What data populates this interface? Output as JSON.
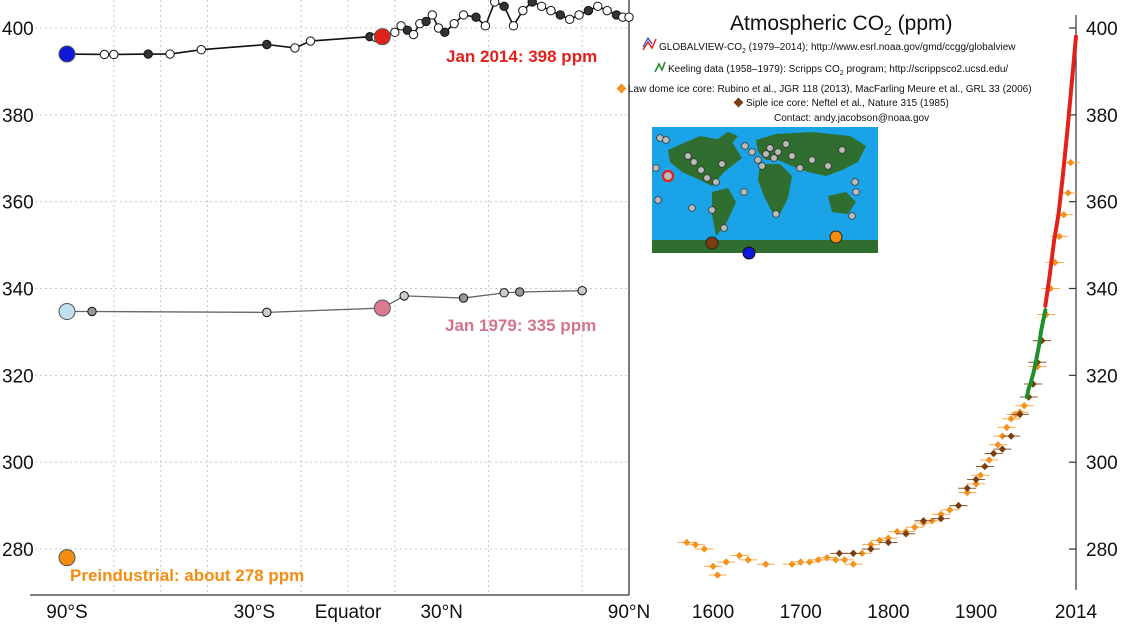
{
  "chart_data": [
    {
      "type": "line",
      "panel": "latitude",
      "title": "",
      "xlabel": "",
      "ylabel": "",
      "x_ticks": [
        "90°S",
        "30°S",
        "Equator",
        "30°N",
        "90°N"
      ],
      "x_tick_values": [
        -90,
        -30,
        0,
        30,
        90
      ],
      "xlim": [
        -90,
        90
      ],
      "ylim": [
        272,
        402
      ],
      "y_ticks": [
        280,
        300,
        320,
        340,
        360,
        380,
        400
      ],
      "grid": true,
      "series": [
        {
          "name": "",
          "color": "#111111",
          "x": [
            -90,
            -78,
            -75,
            -64,
            -57,
            -47,
            -26,
            -17,
            -12,
            7,
            9
          ],
          "y": [
            394,
            393.9,
            393.9,
            394,
            394,
            395,
            396.2,
            395.4,
            397,
            398,
            397.8
          ]
        },
        {
          "name": "",
          "color": "#111111",
          "x": [
            11,
            15,
            17,
            19,
            21,
            23,
            25,
            27,
            29,
            31,
            34,
            37,
            41,
            44,
            47,
            50,
            53,
            56,
            59,
            62,
            65,
            68,
            71,
            74,
            77,
            80,
            83,
            86,
            88,
            90
          ],
          "y": [
            398,
            399,
            400.5,
            399.5,
            398.5,
            401,
            401.5,
            403,
            400,
            399,
            401,
            403,
            402.5,
            400.5,
            406,
            405,
            400.5,
            404,
            406,
            405,
            404,
            403,
            402,
            403,
            404,
            405,
            404,
            403,
            402.5,
            402.5
          ]
        },
        {
          "name": "",
          "color": "#666666",
          "x": [
            -90,
            -82,
            -26,
            11,
            18,
            37,
            50,
            55,
            75
          ],
          "y": [
            334.7,
            334.7,
            334.5,
            335.5,
            338.3,
            337.8,
            339,
            339.2,
            339.5
          ]
        }
      ],
      "highlight_points": [
        {
          "x": -90,
          "y": 394,
          "color": "#1018d8"
        },
        {
          "x": 11,
          "y": 398,
          "color": "#e3211c"
        },
        {
          "x": -90,
          "y": 334.7,
          "color": "#bfe0ee"
        },
        {
          "x": 11,
          "y": 335.5,
          "color": "#d97a8e"
        },
        {
          "x": -90,
          "y": 278,
          "color": "#f28d12"
        }
      ],
      "annotations": [
        {
          "text": "Jan 2014: 398 ppm",
          "color": "#e3211c"
        },
        {
          "text": "Jan 1979: 335 ppm",
          "color": "#d4748a"
        },
        {
          "text": "Preindustrial: about 278 ppm",
          "color": "#f28d12"
        }
      ]
    },
    {
      "type": "scatter",
      "panel": "time",
      "title": "Atmospheric CO",
      "title_sub": "2",
      "title_suffix": " (ppm)",
      "xlabel": "",
      "ylabel": "",
      "x_ticks": [
        "1600",
        "1700",
        "1800",
        "1900",
        "2014"
      ],
      "x_tick_values": [
        1600,
        1700,
        1800,
        1900,
        2014
      ],
      "xlim": [
        1560,
        2014
      ],
      "ylim": [
        272,
        402
      ],
      "y_ticks": [
        280,
        300,
        320,
        340,
        360,
        380,
        400
      ],
      "series": [
        {
          "name": "Law dome ice core",
          "color": "#f5921e",
          "x": [
            1570,
            1580,
            1590,
            1600,
            1605,
            1615,
            1630,
            1640,
            1660,
            1690,
            1700,
            1710,
            1720,
            1730,
            1740,
            1750,
            1760,
            1770,
            1780,
            1790,
            1800,
            1810,
            1820,
            1830,
            1840,
            1850,
            1860,
            1870,
            1880,
            1890,
            1900,
            1905,
            1910,
            1915,
            1920,
            1925,
            1930,
            1935,
            1940,
            1945,
            1950,
            1955,
            1960,
            1965,
            1970,
            1975,
            1980,
            1985,
            1990,
            1995,
            2000,
            2005,
            2008
          ],
          "y": [
            281.5,
            281,
            280,
            276,
            274,
            277,
            278.5,
            277.5,
            276.5,
            276.5,
            277,
            277,
            277.5,
            278,
            277.5,
            277.5,
            276.5,
            279,
            281,
            282,
            282.5,
            284,
            284,
            285,
            286,
            286.5,
            288,
            289,
            290,
            293,
            295,
            297,
            299,
            300.5,
            302,
            304,
            306,
            308,
            310,
            311,
            311.5,
            313,
            315,
            318,
            322,
            328,
            334,
            340,
            346,
            352,
            357,
            362,
            369
          ]
        },
        {
          "name": "Siple ice core",
          "color": "#7a3e12",
          "x": [
            1744,
            1760,
            1780,
            1800,
            1820,
            1840,
            1860,
            1880,
            1890,
            1900,
            1910,
            1920,
            1930,
            1940,
            1950,
            1960,
            1965,
            1970,
            1975
          ],
          "y": [
            279,
            279,
            280,
            281.5,
            283.5,
            286.5,
            287,
            290,
            294,
            296,
            299,
            302,
            303,
            306,
            311,
            315,
            318,
            323,
            328
          ]
        },
        {
          "name": "Keeling data (1958–1979)",
          "color": "#1f8f2a",
          "x": [
            1958,
            1960,
            1962,
            1964,
            1966,
            1968,
            1970,
            1972,
            1974,
            1976,
            1978,
            1979
          ],
          "y": [
            315,
            317,
            318,
            319.5,
            321,
            323,
            325,
            327,
            330,
            332,
            334,
            335
          ]
        },
        {
          "name": "GLOBALVIEW-CO2 (1979–2014)",
          "color": "#e3211c",
          "x": [
            1979,
            1984,
            1989,
            1994,
            1999,
            2004,
            2009,
            2014
          ],
          "y": [
            336,
            343,
            351,
            357,
            366,
            376,
            387,
            398
          ]
        }
      ],
      "legend": {
        "placement": "top",
        "entries": [
          {
            "label": "GLOBALVIEW-CO",
            "sub": "2",
            "rest": " (1979–2014); http://www.esrl.noaa.gov/gmd/ccgg/globalview",
            "color": "#e3211c"
          },
          {
            "label": "Keeling data (1958–1979): Scripps CO",
            "sub": "2",
            "rest": " program; http://scrippsco2.ucsd.edu/",
            "color": "#1f8f2a"
          },
          {
            "label": "Law dome ice core:  Rubino et al., JGR 118 (2013), MacFarling Meure et al., GRL 33 (2006)",
            "sub": "",
            "rest": "",
            "color": "#f5921e"
          },
          {
            "label": "Siple ice core:  Neftel et al., Nature 315 (1985)",
            "sub": "",
            "rest": "",
            "color": "#7a3e12"
          }
        ],
        "contact": "Contact: andy.jacobson@noaa.gov"
      }
    }
  ],
  "map_inset": {
    "ocean_color": "#1aa3e6",
    "land_color": "#2f6e2f",
    "station_color": "#bbbbbb",
    "highlight_colors": [
      "#e3211c",
      "#7a3e12",
      "#f28d12",
      "#1018d8"
    ]
  }
}
